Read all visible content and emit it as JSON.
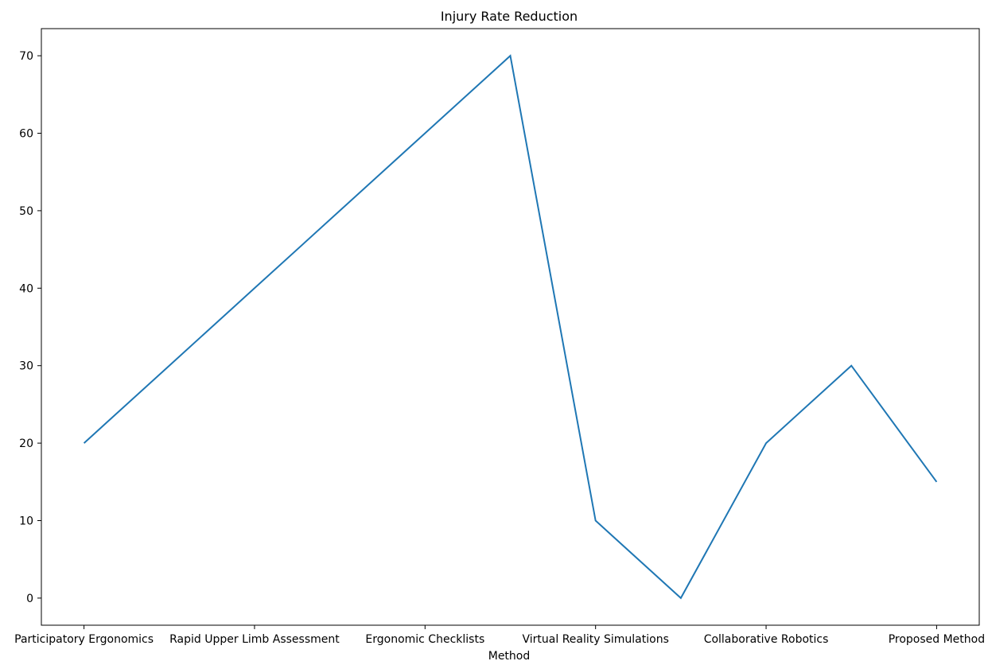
{
  "chart_data": {
    "type": "line",
    "title": "Injury Rate Reduction",
    "xlabel": "Method",
    "ylabel": "",
    "categories": [
      "Participatory Ergonomics",
      "Rapid Upper Limb Assessment",
      "Ergonomic Checklists",
      "Virtual Reality Simulations",
      "Collaborative Robotics",
      "Proposed Method"
    ],
    "x": [
      0,
      1,
      2,
      3,
      4,
      5,
      6,
      7,
      8,
      9,
      10
    ],
    "x_tick_positions": [
      0,
      2,
      4,
      6,
      8,
      10
    ],
    "series": [
      {
        "values": [
          20,
          30,
          40,
          50,
          60,
          70,
          10,
          0,
          20,
          30,
          15
        ],
        "color": "#1f77b4"
      }
    ],
    "yticks": [
      0,
      10,
      20,
      30,
      40,
      50,
      60,
      70
    ],
    "xlim": [
      -0.5,
      10.5
    ],
    "ylim": [
      -3.5,
      73.5
    ],
    "grid": false
  }
}
